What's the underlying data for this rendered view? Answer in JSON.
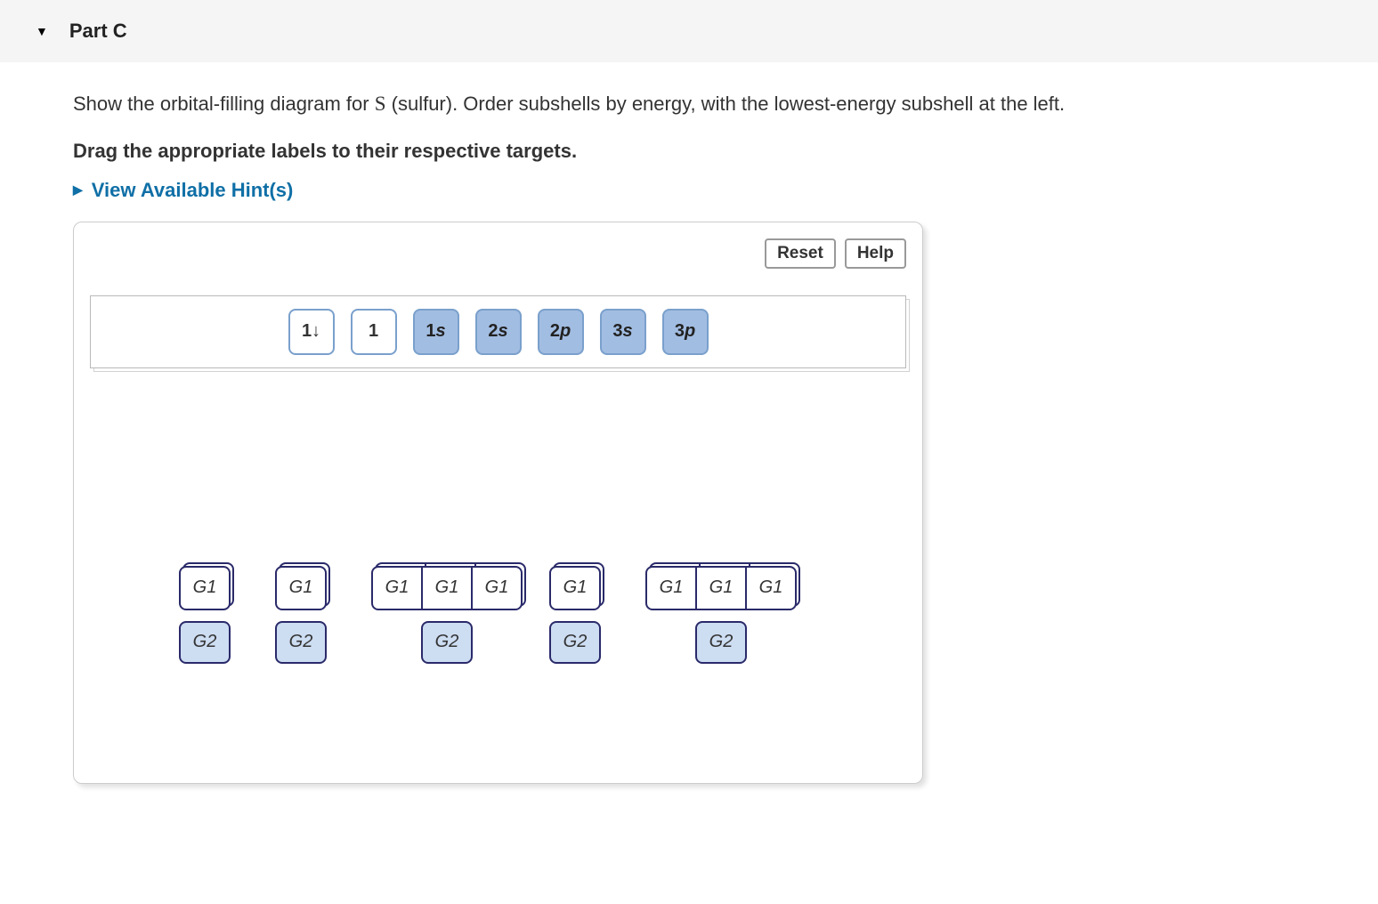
{
  "header": {
    "title": "Part C"
  },
  "question": {
    "pre": "Show the orbital-filling diagram for ",
    "element": "S",
    "post": " (sulfur). Order subshells by energy, with the lowest-energy subshell at the left."
  },
  "instruction": "Drag the appropriate labels to their respective targets.",
  "hints_label": "View Available Hint(s)",
  "toolbar": {
    "reset": "Reset",
    "help": "Help"
  },
  "chips": {
    "spin_pair": "1↓",
    "spin_up": "1",
    "s1": {
      "n": "1",
      "l": "s"
    },
    "s2": {
      "n": "2",
      "l": "s"
    },
    "p2": {
      "n": "2",
      "l": "p"
    },
    "s3": {
      "n": "3",
      "l": "s"
    },
    "p3": {
      "n": "3",
      "l": "p"
    }
  },
  "targets": {
    "g1": "G1",
    "g2": "G2",
    "groups": [
      {
        "orbitals": 1
      },
      {
        "orbitals": 1
      },
      {
        "orbitals": 3
      },
      {
        "orbitals": 1
      },
      {
        "orbitals": 3
      }
    ]
  },
  "style": {
    "chip_bg_filled": "#a2bde2",
    "chip_border": "#7aa0cc",
    "target_border": "#2a2a6a",
    "g2_bg": "#cdddf2",
    "link_color": "#0f6fa6",
    "header_bg": "#f5f5f5"
  }
}
